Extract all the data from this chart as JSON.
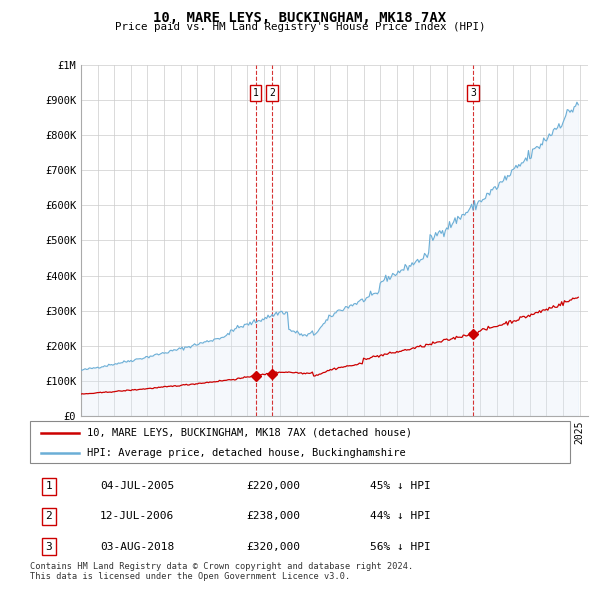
{
  "title": "10, MARE LEYS, BUCKINGHAM, MK18 7AX",
  "subtitle": "Price paid vs. HM Land Registry's House Price Index (HPI)",
  "ylim": [
    0,
    1000000
  ],
  "yticks": [
    0,
    100000,
    200000,
    300000,
    400000,
    500000,
    600000,
    700000,
    800000,
    900000,
    1000000
  ],
  "ytick_labels": [
    "£0",
    "£100K",
    "£200K",
    "£300K",
    "£400K",
    "£500K",
    "£600K",
    "£700K",
    "£800K",
    "£900K",
    "£1M"
  ],
  "hpi_color": "#6baed6",
  "hpi_fill_color": "#deebf7",
  "price_color": "#cc0000",
  "vline_color": "#cc0000",
  "grid_color": "#cccccc",
  "background_color": "#ffffff",
  "transactions": [
    {
      "id": 1,
      "date": "04-JUL-2005",
      "year": 2005.5,
      "price": 220000,
      "pct": "45%",
      "dir": "↓"
    },
    {
      "id": 2,
      "date": "12-JUL-2006",
      "year": 2006.5,
      "price": 238000,
      "pct": "44%",
      "dir": "↓"
    },
    {
      "id": 3,
      "date": "03-AUG-2018",
      "year": 2018.6,
      "price": 320000,
      "pct": "56%",
      "dir": "↓"
    }
  ],
  "legend_label_red": "10, MARE LEYS, BUCKINGHAM, MK18 7AX (detached house)",
  "legend_label_blue": "HPI: Average price, detached house, Buckinghamshire",
  "footer": "Contains HM Land Registry data © Crown copyright and database right 2024.\nThis data is licensed under the Open Government Licence v3.0.",
  "xlim_start": 1995.0,
  "xlim_end": 2025.5
}
